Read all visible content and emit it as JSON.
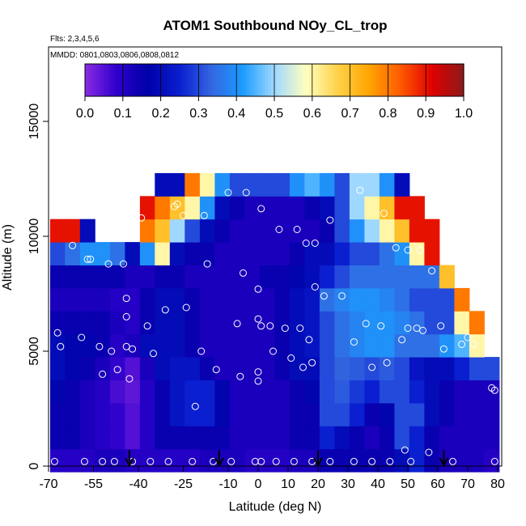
{
  "chart_data": {
    "type": "heatmap",
    "title": "ATOM1 Southbound NOy_CL_trop",
    "subtitle_flights": "Flts: 2,3,4,5,6",
    "subtitle_dates": "MMDD: 0801,0803,0806,0808,0812",
    "xlabel": "Latitude (deg N)",
    "ylabel": "Altitude (m)",
    "xlim": [
      -70,
      82
    ],
    "ylim": [
      0,
      17500
    ],
    "x_tick_labels": [
      "-70",
      "-55",
      "-40",
      "-25",
      "-10",
      "0",
      "10",
      "20",
      "30",
      "40",
      "50",
      "60",
      "70",
      "80"
    ],
    "x_tick_values": [
      -70,
      -55,
      -40,
      -25,
      -10,
      0,
      10,
      20,
      30,
      40,
      50,
      60,
      70,
      80
    ],
    "y_tick_labels": [
      "0",
      "5000",
      "10000",
      "15000"
    ],
    "y_tick_values": [
      0,
      5000,
      10000,
      15000
    ],
    "colorbar": {
      "min": 0.0,
      "max": 1.0,
      "tick_labels": [
        "0.0",
        "0.1",
        "0.2",
        "0.3",
        "0.4",
        "0.5",
        "0.6",
        "0.7",
        "0.8",
        "0.9",
        "1.0"
      ],
      "colors": [
        "#8a2be2",
        "#2e00cc",
        "#0000a8",
        "#0a1fd0",
        "#3366e0",
        "#1a9cff",
        "#9fd8ff",
        "#ffffc0",
        "#ffd24a",
        "#ffa500",
        "#ff5a00",
        "#e00000",
        "#8b1a1a"
      ]
    },
    "profile_grid": {
      "altitudes": [
        250,
        1250,
        2250,
        3250,
        4250,
        5250,
        6250,
        7250,
        8250,
        9250,
        10250,
        11250,
        12250
      ],
      "latitudes": [
        -67,
        -62,
        -57,
        -52,
        -47,
        -42,
        -37,
        -32,
        -27,
        -22,
        -17,
        -12,
        -7,
        -2,
        3,
        8,
        13,
        18,
        23,
        28,
        33,
        38,
        43,
        48,
        53,
        58,
        63,
        68,
        73,
        78
      ],
      "top_altitude": [
        10500,
        10200,
        9800,
        9600,
        9400,
        9300,
        11000,
        12000,
        12000,
        12000,
        12200,
        12500,
        12500,
        12500,
        12500,
        12500,
        12500,
        12500,
        12500,
        13000,
        13000,
        12500,
        12300,
        12000,
        11500,
        10500,
        8500,
        7000,
        6000,
        4000
      ],
      "values": [
        [
          0.1,
          0.1,
          0.1,
          0.12,
          0.12,
          0.1,
          0.1,
          0.1,
          0.1,
          0.1,
          0.12,
          0.12,
          0.12,
          0.1,
          0.1,
          0.1,
          0.12,
          0.12,
          0.15,
          0.15,
          0.15,
          0.15,
          0.15,
          0.2,
          0.25,
          0.15,
          0.12,
          0.12,
          0.12,
          0.1
        ],
        [
          0.15,
          0.15,
          0.12,
          0.1,
          0.08,
          0.05,
          0.1,
          0.15,
          0.15,
          0.15,
          0.15,
          0.15,
          0.12,
          0.12,
          0.12,
          0.12,
          0.15,
          0.15,
          0.25,
          0.2,
          0.15,
          0.12,
          0.15,
          0.3,
          0.25,
          0.15,
          0.12,
          0.12,
          0.12,
          0.12
        ],
        [
          0.15,
          0.15,
          0.12,
          0.1,
          0.08,
          0.05,
          0.1,
          0.15,
          0.22,
          0.25,
          0.25,
          0.18,
          0.12,
          0.12,
          0.12,
          0.12,
          0.15,
          0.15,
          0.3,
          0.3,
          0.25,
          0.15,
          0.18,
          0.3,
          0.3,
          0.2,
          0.15,
          0.12,
          0.12,
          0.12
        ],
        [
          0.18,
          0.15,
          0.12,
          0.1,
          0.06,
          0.04,
          0.1,
          0.15,
          0.22,
          0.25,
          0.25,
          0.18,
          0.12,
          0.12,
          0.12,
          0.12,
          0.15,
          0.18,
          0.3,
          0.32,
          0.28,
          0.25,
          0.3,
          0.3,
          0.25,
          0.2,
          0.15,
          0.12,
          0.12,
          0.12
        ],
        [
          0.2,
          0.18,
          0.15,
          0.12,
          0.08,
          0.05,
          0.12,
          0.2,
          0.22,
          0.22,
          0.15,
          0.12,
          0.12,
          0.12,
          0.12,
          0.15,
          0.2,
          0.2,
          0.3,
          0.33,
          0.32,
          0.3,
          0.32,
          0.3,
          0.22,
          0.2,
          0.2,
          0.25,
          0.3,
          0.3
        ],
        [
          0.2,
          0.18,
          0.18,
          0.15,
          0.1,
          0.12,
          0.2,
          0.2,
          0.2,
          0.15,
          0.12,
          0.12,
          0.12,
          0.12,
          0.12,
          0.15,
          0.2,
          0.22,
          0.3,
          0.35,
          0.38,
          0.4,
          0.4,
          0.35,
          0.35,
          0.35,
          0.4,
          0.45,
          0.6,
          0.4
        ],
        [
          0.15,
          0.15,
          0.15,
          0.15,
          0.12,
          0.1,
          0.15,
          0.2,
          0.2,
          0.15,
          0.12,
          0.12,
          0.12,
          0.12,
          0.12,
          0.15,
          0.2,
          0.22,
          0.3,
          0.35,
          0.38,
          0.4,
          0.4,
          0.38,
          0.35,
          0.3,
          0.3,
          0.6,
          0.8,
          0.2
        ],
        [
          0.12,
          0.12,
          0.12,
          0.12,
          0.1,
          0.1,
          0.15,
          0.2,
          0.2,
          0.15,
          0.12,
          0.12,
          0.12,
          0.12,
          0.12,
          0.15,
          0.2,
          0.22,
          0.35,
          0.38,
          0.4,
          0.4,
          0.38,
          0.35,
          0.3,
          0.3,
          0.3,
          0.8,
          0.9,
          0.2
        ],
        [
          0.15,
          0.15,
          0.15,
          0.15,
          0.15,
          0.12,
          0.12,
          0.15,
          0.15,
          0.12,
          0.12,
          0.12,
          0.12,
          0.12,
          0.15,
          0.15,
          0.18,
          0.2,
          0.25,
          0.3,
          0.35,
          0.35,
          0.35,
          0.35,
          0.35,
          0.35,
          0.7,
          0.9,
          0.2,
          0.2
        ],
        [
          0.3,
          0.35,
          0.4,
          0.4,
          0.35,
          0.2,
          0.4,
          0.6,
          0.2,
          0.15,
          0.15,
          0.12,
          0.12,
          0.12,
          0.12,
          0.12,
          0.15,
          0.2,
          0.2,
          0.25,
          0.3,
          0.3,
          0.35,
          0.4,
          0.6,
          0.9,
          0.2,
          0.2,
          0.2,
          0.2
        ],
        [
          0.9,
          0.9,
          0.2,
          0.2,
          0.2,
          0.2,
          0.8,
          0.7,
          0.5,
          0.3,
          0.2,
          0.15,
          0.12,
          0.12,
          0.12,
          0.12,
          0.12,
          0.12,
          0.15,
          0.3,
          0.4,
          0.5,
          0.6,
          0.7,
          0.9,
          0.9,
          0.2,
          0.2,
          0.2,
          0.2
        ],
        [
          0.2,
          0.2,
          0.2,
          0.2,
          0.2,
          0.2,
          0.9,
          0.8,
          0.7,
          0.6,
          0.4,
          0.2,
          0.15,
          0.12,
          0.12,
          0.12,
          0.12,
          0.15,
          0.2,
          0.3,
          0.5,
          0.6,
          0.7,
          0.9,
          0.9,
          0.2,
          0.2,
          0.2,
          0.2,
          0.2
        ],
        [
          0.2,
          0.2,
          0.2,
          0.2,
          0.2,
          0.2,
          0.2,
          0.2,
          0.2,
          0.8,
          0.6,
          0.4,
          0.3,
          0.3,
          0.3,
          0.3,
          0.4,
          0.45,
          0.4,
          0.3,
          0.5,
          0.5,
          0.4,
          0.2,
          0.2,
          0.2,
          0.2,
          0.2,
          0.2,
          0.2
        ]
      ]
    },
    "observation_points": [
      {
        "lat": -67,
        "alt": 5800
      },
      {
        "lat": -66,
        "alt": 5200
      },
      {
        "lat": -62,
        "alt": 9600
      },
      {
        "lat": -59,
        "alt": 5600
      },
      {
        "lat": -57,
        "alt": 9000
      },
      {
        "lat": -56,
        "alt": 9000
      },
      {
        "lat": -53,
        "alt": 5200
      },
      {
        "lat": -52,
        "alt": 4000
      },
      {
        "lat": -50,
        "alt": 8800
      },
      {
        "lat": -49,
        "alt": 5000
      },
      {
        "lat": -47,
        "alt": 4200
      },
      {
        "lat": -45,
        "alt": 8800
      },
      {
        "lat": -44,
        "alt": 7300
      },
      {
        "lat": -44,
        "alt": 6500
      },
      {
        "lat": -43,
        "alt": 3800
      },
      {
        "lat": -44,
        "alt": 5200
      },
      {
        "lat": -42,
        "alt": 5100
      },
      {
        "lat": -39,
        "alt": 10800
      },
      {
        "lat": -37,
        "alt": 6100
      },
      {
        "lat": -35,
        "alt": 4900
      },
      {
        "lat": -31,
        "alt": 6800
      },
      {
        "lat": -28,
        "alt": 11300
      },
      {
        "lat": -27,
        "alt": 11400
      },
      {
        "lat": -25,
        "alt": 10900
      },
      {
        "lat": -24,
        "alt": 6900
      },
      {
        "lat": -21,
        "alt": 2600
      },
      {
        "lat": -19,
        "alt": 5000
      },
      {
        "lat": -18,
        "alt": 10900
      },
      {
        "lat": -17,
        "alt": 8800
      },
      {
        "lat": -14,
        "alt": 4200
      },
      {
        "lat": -10,
        "alt": 11900
      },
      {
        "lat": -7,
        "alt": 6200
      },
      {
        "lat": -6,
        "alt": 3900
      },
      {
        "lat": -5,
        "alt": 8400
      },
      {
        "lat": -4,
        "alt": 11900
      },
      {
        "lat": 0,
        "alt": 6400
      },
      {
        "lat": 0,
        "alt": 7700
      },
      {
        "lat": 0,
        "alt": 4100
      },
      {
        "lat": 0,
        "alt": 3700
      },
      {
        "lat": 1,
        "alt": 6100
      },
      {
        "lat": 1,
        "alt": 11200
      },
      {
        "lat": 4,
        "alt": 6100
      },
      {
        "lat": 5,
        "alt": 5000
      },
      {
        "lat": 7,
        "alt": 10300
      },
      {
        "lat": 9,
        "alt": 6000
      },
      {
        "lat": 11,
        "alt": 4700
      },
      {
        "lat": 13,
        "alt": 10300
      },
      {
        "lat": 14,
        "alt": 6000
      },
      {
        "lat": 15,
        "alt": 4300
      },
      {
        "lat": 16,
        "alt": 9700
      },
      {
        "lat": 17,
        "alt": 5500
      },
      {
        "lat": 18,
        "alt": 4500
      },
      {
        "lat": 19,
        "alt": 9700
      },
      {
        "lat": 19,
        "alt": 7800
      },
      {
        "lat": 22,
        "alt": 7400
      },
      {
        "lat": 24,
        "alt": 10700
      },
      {
        "lat": 26,
        "alt": 13000
      },
      {
        "lat": 28,
        "alt": 7400
      },
      {
        "lat": 32,
        "alt": 5400
      },
      {
        "lat": 34,
        "alt": 12000
      },
      {
        "lat": 36,
        "alt": 6200
      },
      {
        "lat": 38,
        "alt": 4300
      },
      {
        "lat": 41,
        "alt": 6100
      },
      {
        "lat": 43,
        "alt": 4500
      },
      {
        "lat": 42,
        "alt": 11000
      },
      {
        "lat": 46,
        "alt": 9500
      },
      {
        "lat": 48,
        "alt": 5500
      },
      {
        "lat": 50,
        "alt": 6000
      },
      {
        "lat": 50,
        "alt": 9400
      },
      {
        "lat": 53,
        "alt": 6000
      },
      {
        "lat": 55,
        "alt": 5900
      },
      {
        "lat": 54,
        "alt": 9400
      },
      {
        "lat": 58,
        "alt": 8500
      },
      {
        "lat": 61,
        "alt": 6100
      },
      {
        "lat": 62,
        "alt": 5100
      },
      {
        "lat": 68,
        "alt": 5300
      },
      {
        "lat": 70,
        "alt": 5600
      },
      {
        "lat": 72,
        "alt": 5300
      },
      {
        "lat": 78,
        "alt": 3400
      },
      {
        "lat": 79,
        "alt": 3300
      },
      {
        "lat": -68,
        "alt": 200
      },
      {
        "lat": -58,
        "alt": 200
      },
      {
        "lat": -52,
        "alt": 200
      },
      {
        "lat": -48,
        "alt": 200
      },
      {
        "lat": -42,
        "alt": 200
      },
      {
        "lat": -36,
        "alt": 200
      },
      {
        "lat": -30,
        "alt": 200
      },
      {
        "lat": -22,
        "alt": 200
      },
      {
        "lat": -15,
        "alt": 200
      },
      {
        "lat": -9,
        "alt": 200
      },
      {
        "lat": -1,
        "alt": 200
      },
      {
        "lat": 1,
        "alt": 200
      },
      {
        "lat": 6,
        "alt": 200
      },
      {
        "lat": 12,
        "alt": 200
      },
      {
        "lat": 18,
        "alt": 200
      },
      {
        "lat": 24,
        "alt": 200
      },
      {
        "lat": 32,
        "alt": 200
      },
      {
        "lat": 38,
        "alt": 200
      },
      {
        "lat": 44,
        "alt": 200
      },
      {
        "lat": 51,
        "alt": 200
      },
      {
        "lat": 57,
        "alt": 600
      },
      {
        "lat": 49,
        "alt": 700
      },
      {
        "lat": 65,
        "alt": 200
      },
      {
        "lat": 79,
        "alt": 200
      }
    ],
    "arrows": [
      {
        "lat": -43,
        "alt_top": 700
      },
      {
        "lat": -13,
        "alt_top": 700
      },
      {
        "lat": 20,
        "alt_top": 700
      },
      {
        "lat": 62,
        "alt_top": 700
      }
    ]
  }
}
